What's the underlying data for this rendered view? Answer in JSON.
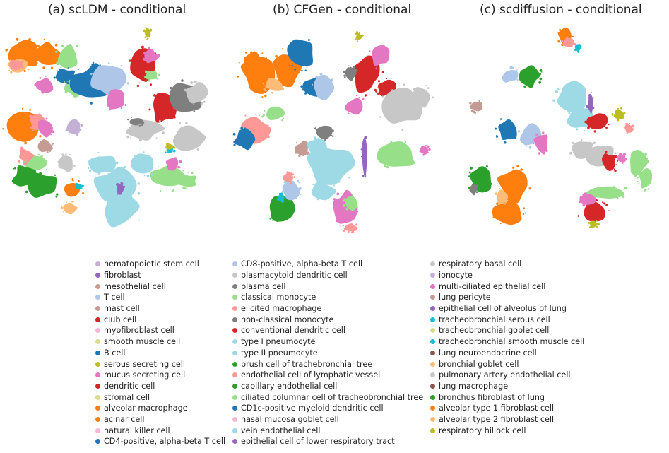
{
  "chart_data": [
    {
      "type": "scatter",
      "title": "(a) scLDM - conditional",
      "xlabel": "",
      "ylabel": "",
      "grid": false
    },
    {
      "type": "scatter",
      "title": "(b) CFGen - conditional",
      "xlabel": "",
      "ylabel": "",
      "grid": false
    },
    {
      "type": "scatter",
      "title": "(c) scdiffusion - conditional",
      "xlabel": "",
      "ylabel": "",
      "grid": false
    }
  ],
  "colors": {
    "blue": "#1f77b4",
    "lightblue": "#aec7e8",
    "orange": "#ff7f0e",
    "lightorange": "#ffbb78",
    "green": "#2ca02c",
    "lightgreen": "#98df8a",
    "red": "#d62728",
    "salmon": "#ff9896",
    "purple": "#9467bd",
    "lavender": "#c5b0d5",
    "brown": "#8c564b",
    "tan": "#c49c94",
    "pink": "#e377c2",
    "lightpink": "#f7b6d2",
    "gray": "#7f7f7f",
    "lightgray": "#c7c7c7",
    "olive": "#bcbd22",
    "khaki": "#dbdb8d",
    "cyan": "#17becf",
    "lightcyan": "#9edae5"
  },
  "legend": [
    [
      {
        "label": "hematopoietic stem cell",
        "color": "#c5b0d5"
      },
      {
        "label": "fibroblast",
        "color": "#9467bd"
      },
      {
        "label": "mesothelial cell",
        "color": "#c49c94"
      },
      {
        "label": "T cell",
        "color": "#aec7e8"
      },
      {
        "label": "mast cell",
        "color": "#c49c94"
      },
      {
        "label": "club cell",
        "color": "#d62728"
      },
      {
        "label": "myofibroblast cell",
        "color": "#f7b6d2"
      },
      {
        "label": "smooth muscle cell",
        "color": "#dbdb8d"
      },
      {
        "label": "B cell",
        "color": "#1f77b4"
      },
      {
        "label": "serous secreting cell",
        "color": "#bcbd22"
      },
      {
        "label": "mucus secreting cell",
        "color": "#e377c2"
      },
      {
        "label": "dendritic cell",
        "color": "#d62728"
      },
      {
        "label": "stromal cell",
        "color": "#dbdb8d"
      },
      {
        "label": "alveolar macrophage",
        "color": "#ff7f0e"
      },
      {
        "label": "acinar cell",
        "color": "#ff7f0e"
      },
      {
        "label": "natural killer cell",
        "color": "#f7b6d2"
      },
      {
        "label": "CD4-positive, alpha-beta T cell",
        "color": "#1f77b4"
      }
    ],
    [
      {
        "label": "CD8-positive, alpha-beta T cell",
        "color": "#aec7e8"
      },
      {
        "label": "plasmacytoid dendritic cell",
        "color": "#c7c7c7"
      },
      {
        "label": "plasma cell",
        "color": "#7f7f7f"
      },
      {
        "label": "classical monocyte",
        "color": "#98df8a"
      },
      {
        "label": "elicited macrophage",
        "color": "#ff9896"
      },
      {
        "label": "non-classical monocyte",
        "color": "#7f7f7f"
      },
      {
        "label": "conventional dendritic cell",
        "color": "#d62728"
      },
      {
        "label": "type I pneumocyte",
        "color": "#9edae5"
      },
      {
        "label": "type II pneumocyte",
        "color": "#9edae5"
      },
      {
        "label": "brush cell of trachebronchial tree",
        "color": "#2ca02c"
      },
      {
        "label": "endothelial cell of lymphatic vessel",
        "color": "#ff9896"
      },
      {
        "label": "capillary endothelial cell",
        "color": "#2ca02c"
      },
      {
        "label": "ciliated columnar cell of tracheobronchial tree",
        "color": "#98df8a"
      },
      {
        "label": "CD1c-positive myeloid dendritic cell",
        "color": "#1f77b4"
      },
      {
        "label": "nasal mucosa goblet cell",
        "color": "#f7b6d2"
      },
      {
        "label": "vein endothelial cell",
        "color": "#9edae5"
      },
      {
        "label": "epithelial cell of lower respiratory tract",
        "color": "#9467bd"
      }
    ],
    [
      {
        "label": "respiratory basal cell",
        "color": "#c7c7c7"
      },
      {
        "label": "ionocyte",
        "color": "#c5b0d5"
      },
      {
        "label": "multi-ciliated epithelial cell",
        "color": "#e377c2"
      },
      {
        "label": "lung pericyte",
        "color": "#c49c94"
      },
      {
        "label": "epithelial cell of alveolus of lung",
        "color": "#9467bd"
      },
      {
        "label": "tracheobronchial serous cell",
        "color": "#17becf"
      },
      {
        "label": "tracheobronchial goblet cell",
        "color": "#dbdb8d"
      },
      {
        "label": "tracheobronchial smooth muscle cell",
        "color": "#17becf"
      },
      {
        "label": "lung neuroendocrine cell",
        "color": "#8c564b"
      },
      {
        "label": "bronchial goblet cell",
        "color": "#ffbb78"
      },
      {
        "label": "pulmonary artery endothelial cell",
        "color": "#c7c7c7"
      },
      {
        "label": "lung macrophage",
        "color": "#8c564b"
      },
      {
        "label": "bronchus fibroblast of lung",
        "color": "#2ca02c"
      },
      {
        "label": "alveolar type 1 fibroblast cell",
        "color": "#ff7f0e"
      },
      {
        "label": "alveolar type 2 fibroblast cell",
        "color": "#ffbb78"
      },
      {
        "label": "respiratory hillock cell",
        "color": "#bcbd22"
      }
    ]
  ]
}
